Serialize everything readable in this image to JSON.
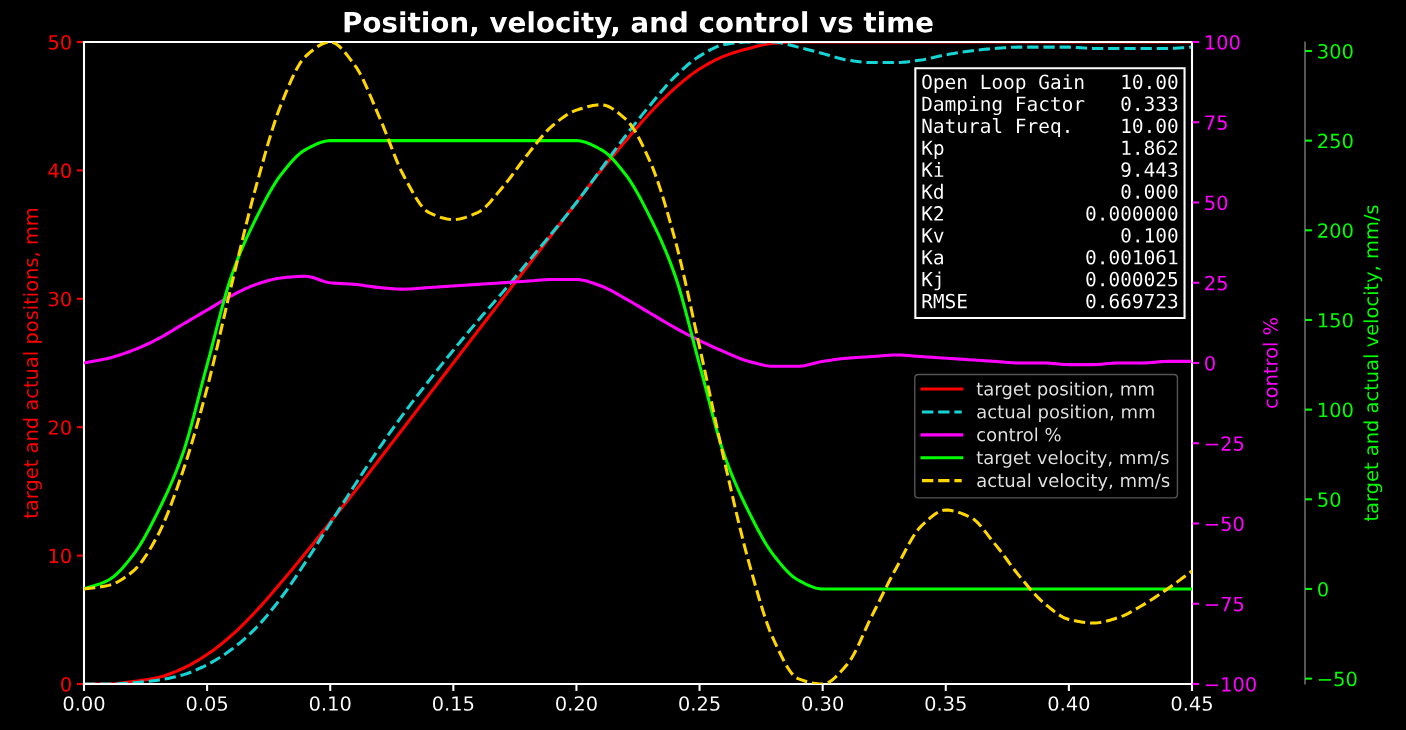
{
  "chart_data": {
    "type": "line",
    "title": "Position, velocity, and control vs time",
    "ylabel": "target and actual positions, mm",
    "y2label": "control %",
    "y3label": "target and actual velocity, mm/s",
    "x": [
      0,
      0.01,
      0.02,
      0.03,
      0.04,
      0.05,
      0.06,
      0.07,
      0.08,
      0.09,
      0.1,
      0.11,
      0.12,
      0.13,
      0.14,
      0.15,
      0.16,
      0.17,
      0.18,
      0.19,
      0.2,
      0.21,
      0.22,
      0.23,
      0.24,
      0.25,
      0.26,
      0.27,
      0.28,
      0.29,
      0.3,
      0.31,
      0.32,
      0.33,
      0.34,
      0.35,
      0.36,
      0.37,
      0.38,
      0.39,
      0.4,
      0.41,
      0.42,
      0.43,
      0.44,
      0.45
    ],
    "xlim": [
      0,
      0.45
    ],
    "xticks": [
      {
        "value": 0,
        "label": "0.00"
      },
      {
        "value": 0.05,
        "label": "0.05"
      },
      {
        "value": 0.1,
        "label": "0.10"
      },
      {
        "value": 0.15,
        "label": "0.15"
      },
      {
        "value": 0.2,
        "label": "0.20"
      },
      {
        "value": 0.25,
        "label": "0.25"
      },
      {
        "value": 0.3,
        "label": "0.30"
      },
      {
        "value": 0.35,
        "label": "0.35"
      },
      {
        "value": 0.4,
        "label": "0.40"
      },
      {
        "value": 0.45,
        "label": "0.45"
      }
    ],
    "ylim": [
      0,
      50
    ],
    "yticks": [
      0,
      10,
      20,
      30,
      40,
      50
    ],
    "y2lim": [
      -100,
      100
    ],
    "y2ticks": [
      {
        "value": -100,
        "label": "−100"
      },
      {
        "value": -75,
        "label": "−75"
      },
      {
        "value": -50,
        "label": "−50"
      },
      {
        "value": -25,
        "label": "−25"
      },
      0,
      25,
      50,
      75,
      100
    ],
    "y3lim": [
      -53,
      305
    ],
    "y3ticks": [
      {
        "value": -50,
        "label": "−50"
      },
      0,
      50,
      100,
      150,
      200,
      250,
      300
    ],
    "series": [
      {
        "name": "target position, mm",
        "color": "#ff0000",
        "axis": "y",
        "line_style": "solid",
        "values": [
          0,
          0.0,
          0.2,
          0.5,
          1.2,
          2.3,
          3.8,
          5.7,
          7.9,
          10.2,
          12.6,
          15.0,
          17.5,
          20.0,
          22.5,
          25.0,
          27.5,
          30.0,
          32.5,
          35.0,
          37.5,
          40.0,
          42.3,
          44.5,
          46.4,
          47.9,
          48.9,
          49.5,
          49.9,
          50.0,
          50.0,
          50.0,
          50.0,
          50.0,
          50.0,
          50.0,
          50.0,
          50.0,
          50.0,
          50.0,
          50.0,
          50.0,
          50.0,
          50.0,
          50.0,
          50.0
        ]
      },
      {
        "name": "actual position, mm",
        "color": "#17d4d4",
        "axis": "y",
        "line_style": "dashed",
        "values": [
          0,
          0.0,
          0.1,
          0.3,
          0.7,
          1.5,
          2.7,
          4.4,
          6.7,
          9.5,
          12.5,
          15.5,
          18.4,
          21.1,
          23.6,
          26.0,
          28.3,
          30.5,
          32.8,
          35.1,
          37.5,
          40.1,
          42.7,
          45.1,
          47.3,
          48.9,
          49.8,
          50.0,
          50.0,
          49.6,
          49.1,
          48.6,
          48.4,
          48.4,
          48.6,
          49.0,
          49.3,
          49.5,
          49.6,
          49.6,
          49.6,
          49.5,
          49.5,
          49.5,
          49.5,
          49.6
        ]
      },
      {
        "name": "control %",
        "color": "#ff00ff",
        "axis": "y2",
        "line_style": "solid",
        "values": [
          0,
          1.5,
          4,
          7.5,
          12,
          16.5,
          21,
          24.5,
          26.5,
          27,
          25,
          24.5,
          23.5,
          23,
          23.5,
          24,
          24.5,
          25,
          25.5,
          26,
          26,
          24,
          20,
          15.5,
          11,
          7,
          3.5,
          0.5,
          -1,
          -1,
          0.5,
          1.5,
          2,
          2.5,
          2,
          1.5,
          1,
          0.5,
          0,
          0,
          -0.5,
          -0.5,
          0,
          0,
          0.5,
          0.5
        ]
      },
      {
        "name": "target velocity, mm/s",
        "color": "#00ff00",
        "axis": "y3",
        "line_style": "solid",
        "values": [
          0,
          5,
          19,
          43,
          75,
          125,
          175,
          207,
          231,
          245,
          250,
          250,
          250,
          250,
          250,
          250,
          250,
          250,
          250,
          250,
          250,
          245,
          231,
          207,
          175,
          125,
          75,
          43,
          19,
          5,
          0,
          0,
          0,
          0,
          0,
          0,
          0,
          0,
          0,
          0,
          0,
          0,
          0,
          0,
          0,
          0
        ]
      },
      {
        "name": "actual velocity, mm/s",
        "color": "#ffd700",
        "axis": "y3",
        "line_style": "dashed",
        "values": [
          0,
          2,
          10,
          30,
          65,
          112,
          170,
          225,
          270,
          297,
          305,
          292,
          263,
          230,
          210,
          206,
          210,
          224,
          242,
          258,
          267,
          270,
          262,
          238,
          195,
          135,
          72,
          15,
          -28,
          -50,
          -53,
          -42,
          -15,
          12,
          35,
          44,
          40,
          25,
          7,
          -8,
          -17,
          -19,
          -16,
          -9,
          0,
          10
        ]
      }
    ],
    "annotations": [
      "Open Loop Gain   10.00",
      "Damping Factor   0.333",
      "Natural Freq.    10.00",
      "Kp               1.862",
      "Ki               9.443",
      "Kd               0.000",
      "K2            0.000000",
      "Kv               0.100",
      "Ka            0.001061",
      "Kj            0.000025",
      "RMSE          0.669723"
    ],
    "legend": "right"
  }
}
